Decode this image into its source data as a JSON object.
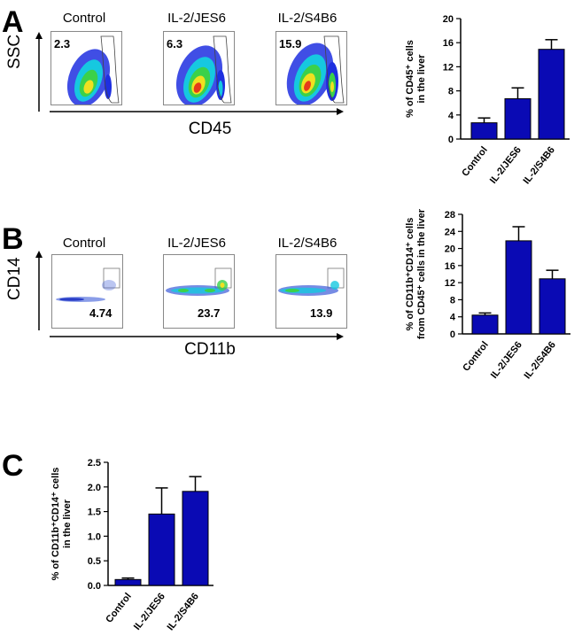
{
  "panelA": {
    "letter": "A",
    "flow": {
      "titles": [
        "Control",
        "IL-2/JES6",
        "IL-2/S4B6"
      ],
      "gate_values": [
        "2.3",
        "6.3",
        "15.9"
      ],
      "y_axis": "SSC",
      "x_axis": "CD45"
    }
  },
  "panelB": {
    "letter": "B",
    "flow": {
      "titles": [
        "Control",
        "IL-2/JES6",
        "IL-2/S4B6"
      ],
      "gate_values": [
        "4.74",
        "23.7",
        "13.9"
      ],
      "y_axis": "CD14",
      "x_axis": "CD11b"
    }
  },
  "panelC": {
    "letter": "C"
  },
  "colors": {
    "bar": "#0a0ab4",
    "bar_edge": "#000000"
  },
  "chart_data": [
    {
      "id": "A",
      "type": "bar",
      "categories": [
        "Control",
        "IL-2/JES6",
        "IL-2/S4B6"
      ],
      "values": [
        2.7,
        6.7,
        14.9
      ],
      "errors": [
        0.8,
        1.8,
        1.6
      ],
      "ylabel_lines": [
        "% of CD45⁺ cells",
        "in the liver"
      ],
      "ylim": [
        0,
        20
      ],
      "yticks": [
        "0",
        "4",
        "8",
        "12",
        "16",
        "20"
      ]
    },
    {
      "id": "B",
      "type": "bar",
      "categories": [
        "Control",
        "IL-2/JES6",
        "IL-2/S4B6"
      ],
      "values": [
        4.4,
        21.8,
        12.9
      ],
      "errors": [
        0.5,
        3.3,
        2.0
      ],
      "ylabel_lines": [
        "% of CD11b⁺CD14⁺ cells",
        "from CD45⁺ cells in the liver"
      ],
      "ylim": [
        0,
        28
      ],
      "yticks": [
        "0",
        "4",
        "8",
        "12",
        "16",
        "20",
        "24",
        "28"
      ]
    },
    {
      "id": "C",
      "type": "bar",
      "categories": [
        "Control",
        "IL-2/JES6",
        "IL-2/S4B6"
      ],
      "values": [
        0.12,
        1.45,
        1.91
      ],
      "errors": [
        0.03,
        0.53,
        0.3
      ],
      "ylabel_lines": [
        "% of CD11b⁺CD14⁺ cells",
        "in the liver"
      ],
      "ylim": [
        0,
        2.5
      ],
      "yticks": [
        "0.0",
        "0.5",
        "1.0",
        "1.5",
        "2.0",
        "2.5"
      ]
    }
  ]
}
